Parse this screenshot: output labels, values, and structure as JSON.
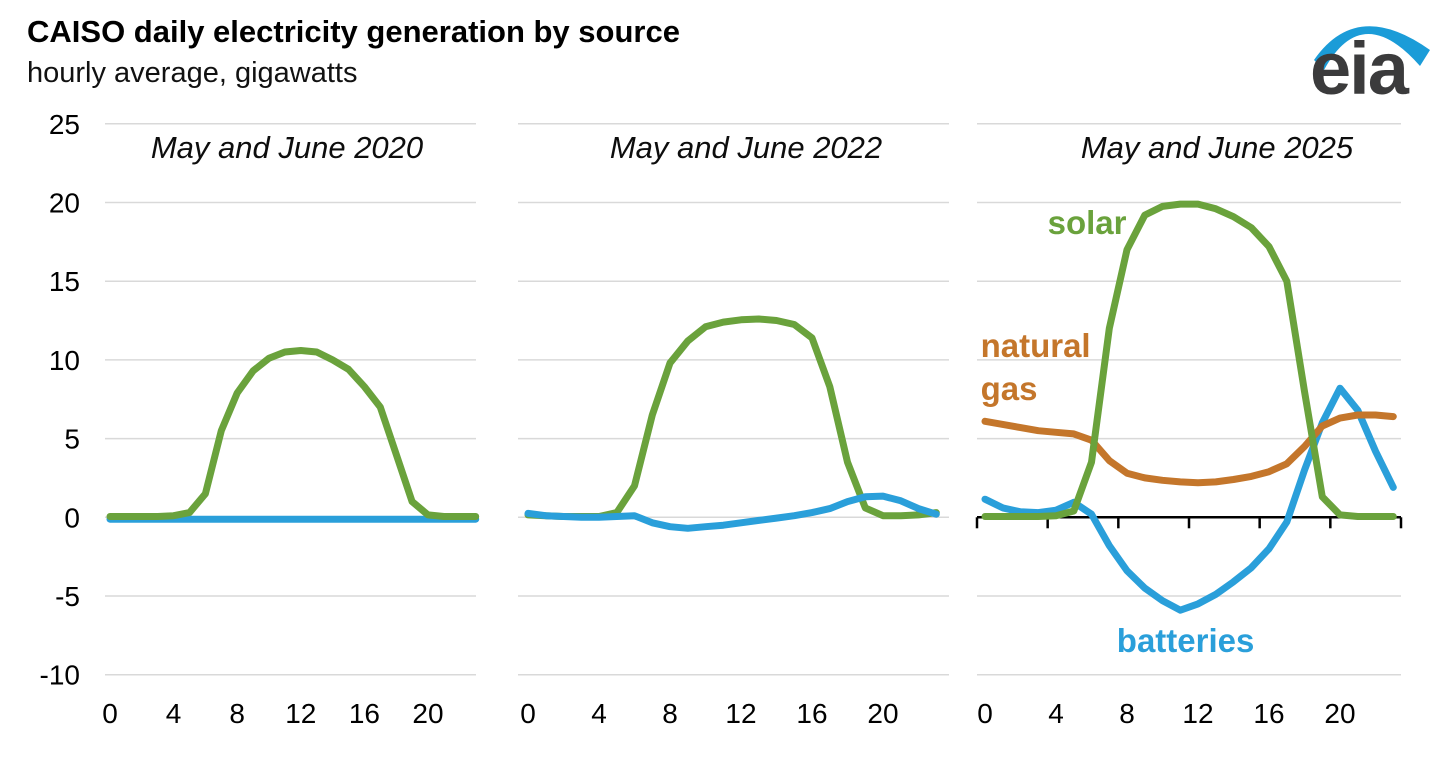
{
  "header": {
    "title": "CAISO daily electricity generation by source",
    "subtitle": "hourly average, gigawatts"
  },
  "logo": {
    "text": "eia"
  },
  "chart_data": {
    "type": "line",
    "title": "CAISO daily electricity generation by source",
    "subtitle": "hourly average, gigawatts",
    "ylabel": "gigawatts",
    "ylim": [
      -10,
      25
    ],
    "yticks": [
      25,
      20,
      15,
      10,
      5,
      0,
      -5,
      -10
    ],
    "xticks": [
      0,
      4,
      8,
      12,
      16,
      20
    ],
    "hours": [
      0,
      1,
      2,
      3,
      4,
      5,
      6,
      7,
      8,
      9,
      10,
      11,
      12,
      13,
      14,
      15,
      16,
      17,
      18,
      19,
      20,
      21,
      22,
      23
    ],
    "grid": true,
    "legend_position": "inline-labels",
    "gridline_color": "#d9d9d9",
    "colors": {
      "solar": "#6aa23c",
      "natural_gas": "#c4762b",
      "batteries": "#2a9fda"
    },
    "panels": [
      {
        "title": "May and June 2020",
        "zero_axis": false,
        "series": [
          {
            "name": "batteries",
            "values": [
              -0.12,
              -0.12,
              -0.12,
              -0.12,
              -0.12,
              -0.12,
              -0.12,
              -0.12,
              -0.12,
              -0.12,
              -0.12,
              -0.12,
              -0.12,
              -0.12,
              -0.12,
              -0.12,
              -0.12,
              -0.12,
              -0.12,
              -0.12,
              -0.12,
              -0.12,
              -0.12,
              -0.12
            ]
          },
          {
            "name": "solar",
            "values": [
              0.05,
              0.05,
              0.05,
              0.05,
              0.1,
              0.3,
              1.5,
              5.5,
              7.9,
              9.3,
              10.1,
              10.5,
              10.6,
              10.5,
              10.0,
              9.4,
              8.3,
              7.0,
              4.0,
              1.0,
              0.15,
              0.05,
              0.05,
              0.05
            ]
          }
        ],
        "annotations": []
      },
      {
        "title": "May and June 2022",
        "zero_axis": false,
        "series": [
          {
            "name": "solar",
            "values": [
              0.15,
              0.1,
              0.05,
              0.05,
              0.05,
              0.3,
              2.0,
              6.5,
              9.8,
              11.2,
              12.1,
              12.4,
              12.55,
              12.6,
              12.5,
              12.25,
              11.4,
              8.3,
              3.5,
              0.6,
              0.1,
              0.1,
              0.15,
              0.3
            ]
          },
          {
            "name": "batteries",
            "values": [
              0.25,
              0.1,
              0.05,
              0.0,
              0.0,
              0.05,
              0.1,
              -0.35,
              -0.6,
              -0.7,
              -0.6,
              -0.5,
              -0.35,
              -0.2,
              -0.05,
              0.1,
              0.3,
              0.55,
              1.0,
              1.3,
              1.35,
              1.05,
              0.55,
              0.2
            ]
          }
        ],
        "annotations": []
      },
      {
        "title": "May and June 2025",
        "zero_axis": true,
        "series": [
          {
            "name": "batteries",
            "values": [
              1.15,
              0.6,
              0.35,
              0.3,
              0.45,
              0.95,
              0.2,
              -1.8,
              -3.4,
              -4.5,
              -5.3,
              -5.9,
              -5.5,
              -4.9,
              -4.1,
              -3.2,
              -2.0,
              -0.3,
              3.0,
              6.0,
              8.2,
              6.8,
              4.2,
              1.9
            ]
          },
          {
            "name": "natural_gas",
            "values": [
              6.1,
              5.9,
              5.7,
              5.5,
              5.4,
              5.3,
              4.9,
              3.6,
              2.8,
              2.5,
              2.35,
              2.25,
              2.2,
              2.25,
              2.4,
              2.6,
              2.9,
              3.4,
              4.5,
              5.8,
              6.3,
              6.5,
              6.5,
              6.4
            ]
          },
          {
            "name": "solar",
            "values": [
              0.05,
              0.05,
              0.05,
              0.05,
              0.1,
              0.4,
              3.5,
              12.0,
              17.0,
              19.2,
              19.75,
              19.9,
              19.9,
              19.6,
              19.1,
              18.4,
              17.2,
              15.0,
              8.0,
              1.3,
              0.15,
              0.05,
              0.05,
              0.05
            ]
          }
        ],
        "annotations": [
          {
            "text": "solar",
            "series": "solar",
            "h": 5.75,
            "v": 18.0,
            "anchor": "middle"
          },
          {
            "text": "natural",
            "series": "natural_gas",
            "h": -0.25,
            "v": 10.2,
            "anchor": "start"
          },
          {
            "text": "gas",
            "series": "natural_gas",
            "h": -0.25,
            "v": 7.45,
            "anchor": "start"
          },
          {
            "text": "batteries",
            "series": "batteries",
            "h": 11.3,
            "v": -8.55,
            "anchor": "middle"
          }
        ]
      }
    ]
  }
}
